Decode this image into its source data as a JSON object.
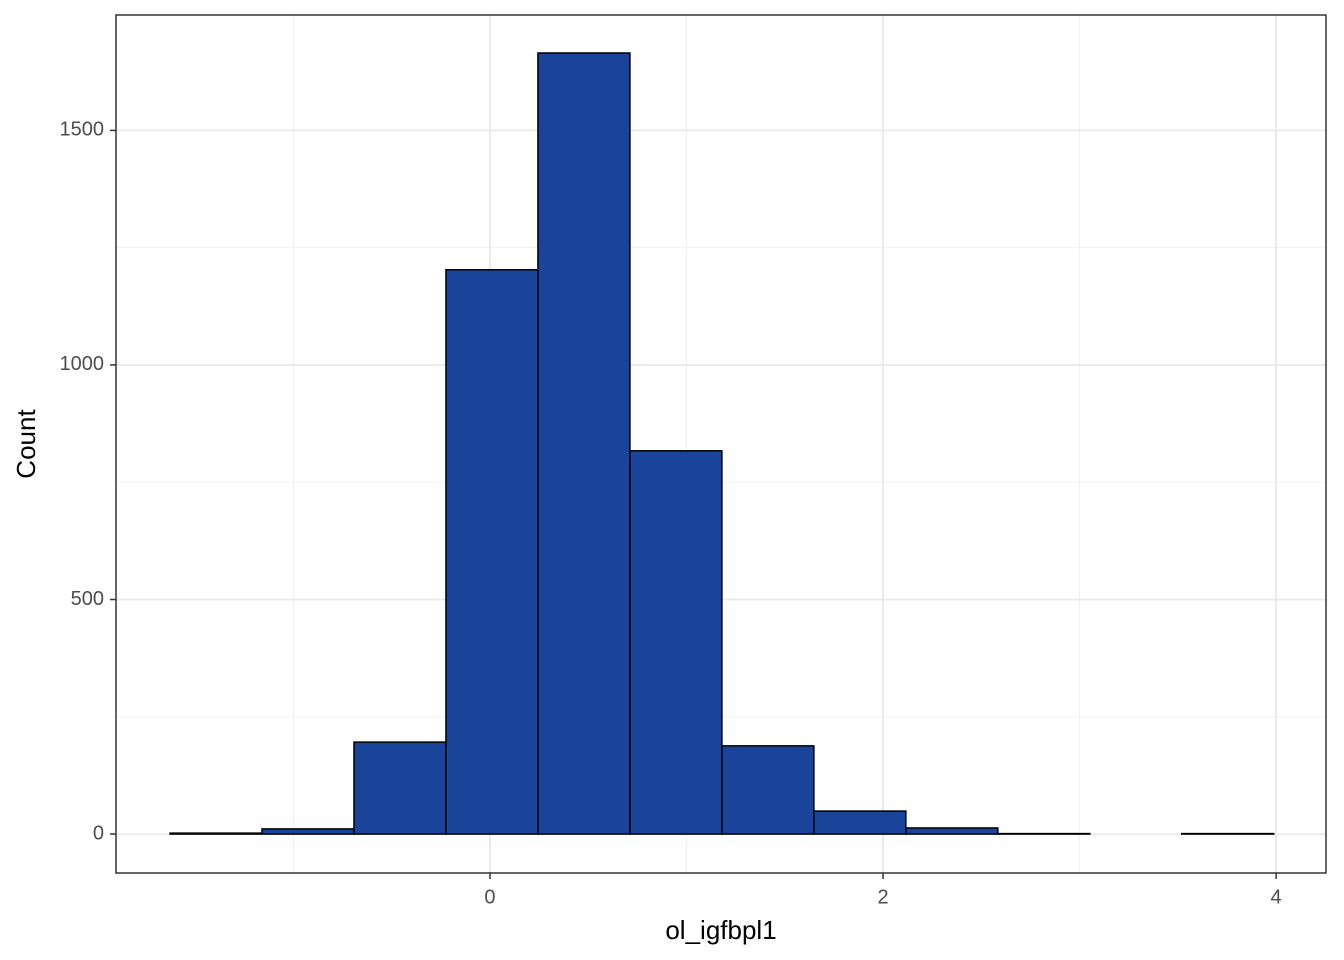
{
  "chart_data": {
    "type": "histogram",
    "x_label": "ol_igfbpl1",
    "y_label": "Count",
    "bins": [
      -1.628,
      -1.16,
      -0.692,
      -0.224,
      0.244,
      0.712,
      1.18,
      1.648,
      2.116,
      2.584,
      3.052,
      3.52,
      3.988
    ],
    "values": [
      2,
      11,
      196,
      1203,
      1665,
      817,
      188,
      49,
      13,
      1,
      0,
      1
    ],
    "color": "#1a4499",
    "edge_color": "#000000",
    "xlim": [
      -1.903,
      4.254
    ],
    "ylim": [
      -83,
      1746
    ],
    "xticks": [
      0,
      2,
      4
    ],
    "yticks": [
      0,
      500,
      1000,
      1500
    ],
    "xminor": [
      -1,
      1,
      3
    ],
    "yminor": [
      250,
      750,
      1250
    ],
    "grid": true
  }
}
